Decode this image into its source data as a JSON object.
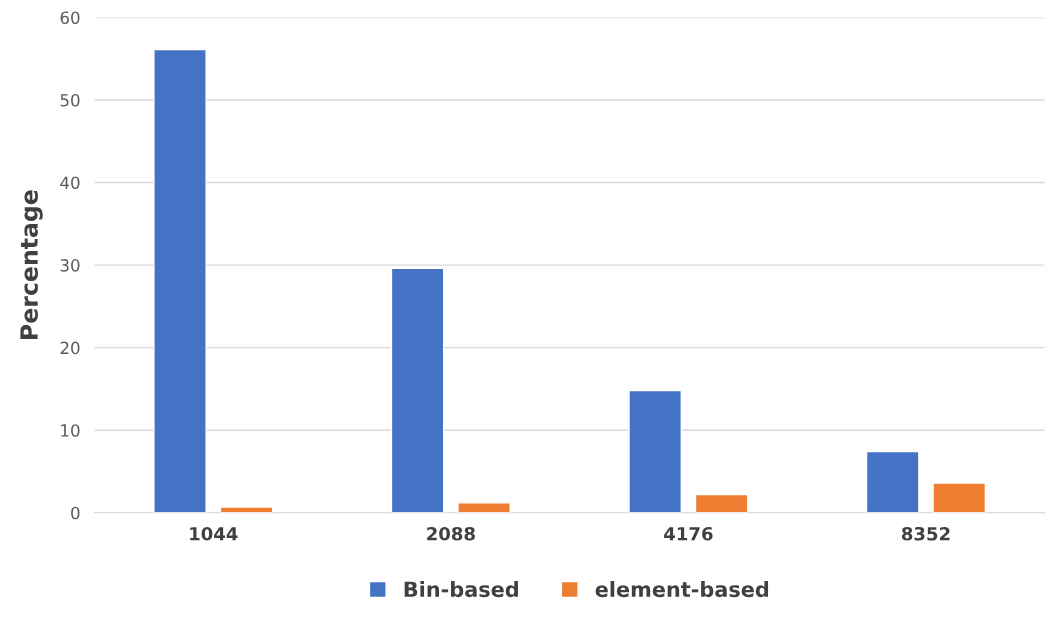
{
  "chart_data": {
    "type": "bar",
    "ylabel": "Percentage",
    "categories": [
      "1044",
      "2088",
      "4176",
      "8352"
    ],
    "series": [
      {
        "name": "Bin-based",
        "color": "#4472c4",
        "values": [
          56.1,
          29.6,
          14.8,
          7.4
        ]
      },
      {
        "name": "element-based",
        "color": "#ed7d31",
        "values": [
          0.7,
          1.2,
          2.2,
          3.6
        ]
      }
    ],
    "ylim": [
      0,
      60
    ],
    "yticks": [
      0,
      10,
      20,
      30,
      40,
      50,
      60
    ],
    "grid": "y",
    "legend": "bottom"
  }
}
